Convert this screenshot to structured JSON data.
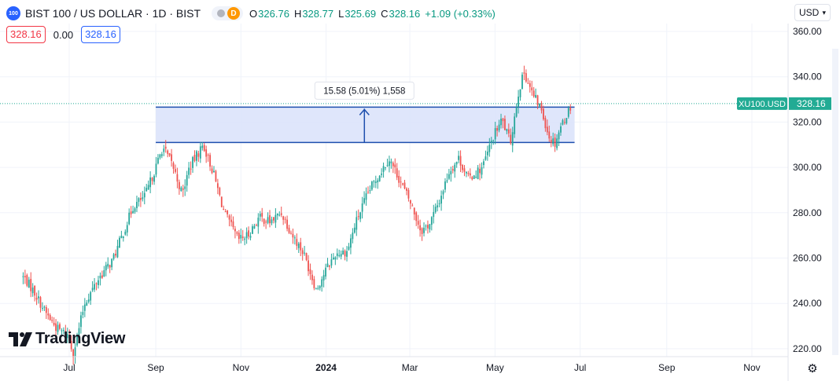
{
  "header": {
    "logo_badge": "100",
    "symbol_title": "BIST 100 / US DOLLAR · 1D · BIST",
    "delay_badge": "D",
    "ohlc": {
      "open_key": "O",
      "open": "326.76",
      "high_key": "H",
      "high": "328.77",
      "low_key": "L",
      "low": "325.69",
      "close_key": "C",
      "close": "328.16",
      "change": "+1.09 (+0.33%)"
    }
  },
  "trade": {
    "sell": "328.16",
    "spread": "0.00",
    "buy": "328.16"
  },
  "currency": {
    "selected": "USD"
  },
  "price_label": {
    "ticker": "XU100.USD",
    "price": "328.16"
  },
  "measure": {
    "label": "15.58 (5.01%) 1,558"
  },
  "branding": {
    "logo_text": "TradingView"
  },
  "colors": {
    "up": "#26a69a",
    "down": "#ef5350",
    "measure_fill": "#dbe3fb",
    "measure_line": "#1e4fae",
    "accent": "#2962ff",
    "price_label": "#22ab94"
  },
  "chart_data": {
    "type": "candlestick",
    "symbol": "BIST 100 / US DOLLAR",
    "interval": "1D",
    "exchange": "BIST",
    "x_tick_labels": [
      "Jul",
      "Sep",
      "Nov",
      "2024",
      "Mar",
      "May",
      "Jul",
      "Sep",
      "Nov"
    ],
    "y_tick_labels": [
      "220.00",
      "240.00",
      "260.00",
      "280.00",
      "300.00",
      "320.00",
      "340.00",
      "360.00"
    ],
    "ylim": [
      217,
      365
    ],
    "grid": true,
    "measure_range": {
      "low": 311.0,
      "high": 326.6,
      "change": "15.58",
      "percent": "5.01%",
      "ticks": "1,558"
    },
    "last_price": 328.16,
    "trend_anchors": [
      [
        "2023-05-29",
        252
      ],
      [
        "2023-06-06",
        245
      ],
      [
        "2023-06-14",
        236
      ],
      [
        "2023-06-22",
        229
      ],
      [
        "2023-06-30",
        226
      ],
      [
        "2023-07-04",
        218
      ],
      [
        "2023-07-12",
        240
      ],
      [
        "2023-07-22",
        251
      ],
      [
        "2023-08-01",
        259
      ],
      [
        "2023-08-08",
        270
      ],
      [
        "2023-08-16",
        283
      ],
      [
        "2023-08-24",
        287
      ],
      [
        "2023-09-01",
        300
      ],
      [
        "2023-09-06",
        309
      ],
      [
        "2023-09-13",
        301
      ],
      [
        "2023-09-20",
        288
      ],
      [
        "2023-09-25",
        300
      ],
      [
        "2023-10-01",
        306
      ],
      [
        "2023-10-05",
        310
      ],
      [
        "2023-10-12",
        298
      ],
      [
        "2023-10-20",
        280
      ],
      [
        "2023-10-30",
        268
      ],
      [
        "2023-11-06",
        270
      ],
      [
        "2023-11-14",
        278
      ],
      [
        "2023-11-22",
        276
      ],
      [
        "2023-11-30",
        280
      ],
      [
        "2023-12-08",
        270
      ],
      [
        "2023-12-16",
        262
      ],
      [
        "2023-12-25",
        246
      ],
      [
        "2024-01-01",
        255
      ],
      [
        "2024-01-08",
        262
      ],
      [
        "2024-01-16",
        263
      ],
      [
        "2024-01-23",
        277
      ],
      [
        "2024-02-01",
        290
      ],
      [
        "2024-02-10",
        299
      ],
      [
        "2024-02-15",
        304
      ],
      [
        "2024-02-20",
        298
      ],
      [
        "2024-03-01",
        285
      ],
      [
        "2024-03-09",
        272
      ],
      [
        "2024-03-15",
        275
      ],
      [
        "2024-03-22",
        285
      ],
      [
        "2024-03-29",
        298
      ],
      [
        "2024-04-05",
        304
      ],
      [
        "2024-04-12",
        295
      ],
      [
        "2024-04-22",
        300
      ],
      [
        "2024-04-30",
        314
      ],
      [
        "2024-05-06",
        321
      ],
      [
        "2024-05-12",
        311
      ],
      [
        "2024-05-18",
        334
      ],
      [
        "2024-05-22",
        342
      ],
      [
        "2024-05-28",
        332
      ],
      [
        "2024-06-03",
        326
      ],
      [
        "2024-06-09",
        313
      ],
      [
        "2024-06-13",
        311
      ],
      [
        "2024-06-17",
        318
      ],
      [
        "2024-06-25",
        328
      ]
    ]
  }
}
